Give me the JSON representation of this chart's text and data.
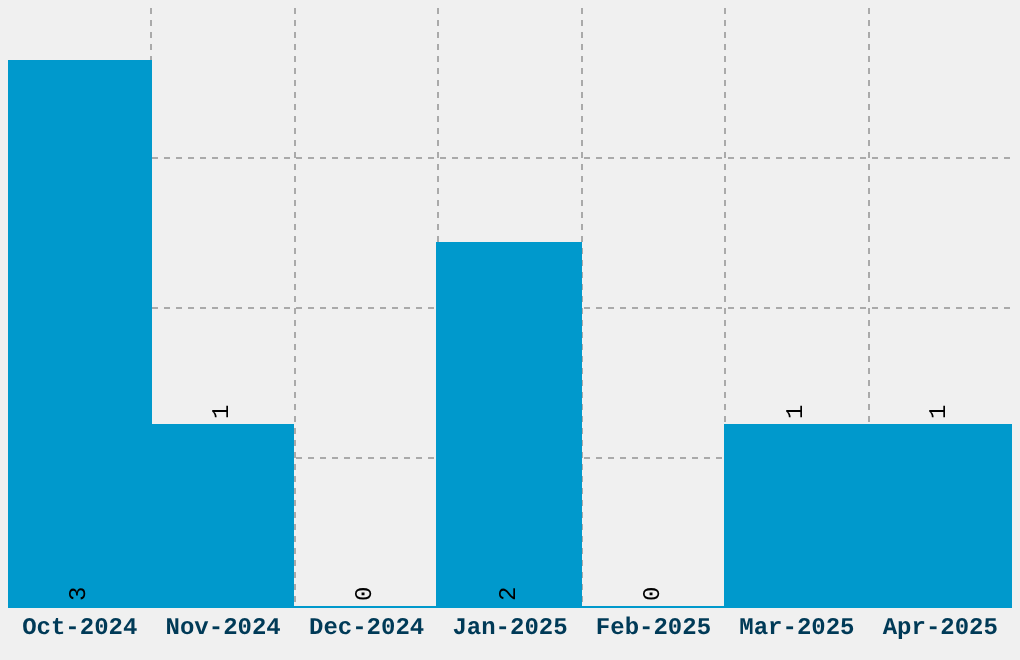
{
  "chart_data": {
    "type": "bar",
    "categories": [
      "Oct-2024",
      "Nov-2024",
      "Dec-2024",
      "Jan-2025",
      "Feb-2025",
      "Mar-2025",
      "Apr-2025"
    ],
    "values": [
      3,
      1,
      0,
      2,
      0,
      1,
      1
    ],
    "color": "#0099cc",
    "data_labels": true,
    "ylim": [
      0,
      3.3
    ],
    "yticks": [
      {
        "value": 0.825,
        "label": null
      },
      {
        "value": 1.65,
        "label": null
      },
      {
        "value": 2.475,
        "label": null
      }
    ],
    "tick_labels": "x",
    "grid": true
  }
}
